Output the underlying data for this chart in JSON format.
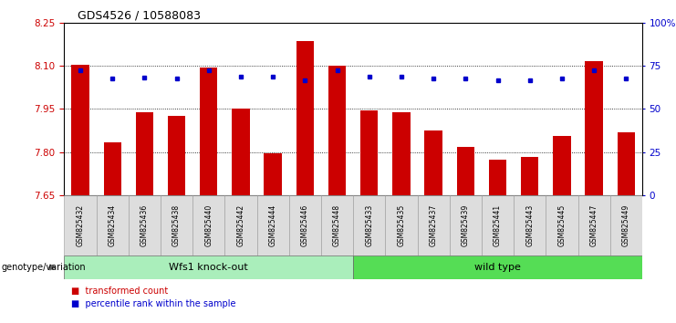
{
  "title": "GDS4526 / 10588083",
  "categories": [
    "GSM825432",
    "GSM825434",
    "GSM825436",
    "GSM825438",
    "GSM825440",
    "GSM825442",
    "GSM825444",
    "GSM825446",
    "GSM825448",
    "GSM825433",
    "GSM825435",
    "GSM825437",
    "GSM825439",
    "GSM825441",
    "GSM825443",
    "GSM825445",
    "GSM825447",
    "GSM825449"
  ],
  "bar_heights": [
    8.105,
    7.835,
    7.94,
    7.925,
    8.095,
    7.95,
    7.795,
    8.185,
    8.1,
    7.945,
    7.94,
    7.875,
    7.82,
    7.775,
    7.785,
    7.855,
    8.115,
    7.87
  ],
  "perc_heights": [
    8.083,
    8.057,
    8.06,
    8.057,
    8.083,
    8.062,
    8.062,
    8.05,
    8.083,
    8.062,
    8.062,
    8.057,
    8.057,
    8.05,
    8.05,
    8.057,
    8.083,
    8.057
  ],
  "ymin": 7.65,
  "ymax": 8.25,
  "yticks": [
    7.65,
    7.8,
    7.95,
    8.1,
    8.25
  ],
  "right_ytick_pcts": [
    0,
    25,
    50,
    75,
    100
  ],
  "right_ytick_labels": [
    "0",
    "25",
    "50",
    "75",
    "100%"
  ],
  "bar_color": "#CC0000",
  "percentile_color": "#0000CC",
  "group1_label": "Wfs1 knock-out",
  "group2_label": "wild type",
  "group1_color": "#AAEEBB",
  "group2_color": "#55DD55",
  "genotype_label": "genotype/variation",
  "legend_red": "transformed count",
  "legend_blue": "percentile rank within the sample",
  "bar_width": 0.55,
  "background_color": "#ffffff",
  "n_group1": 9,
  "n_group2": 9
}
